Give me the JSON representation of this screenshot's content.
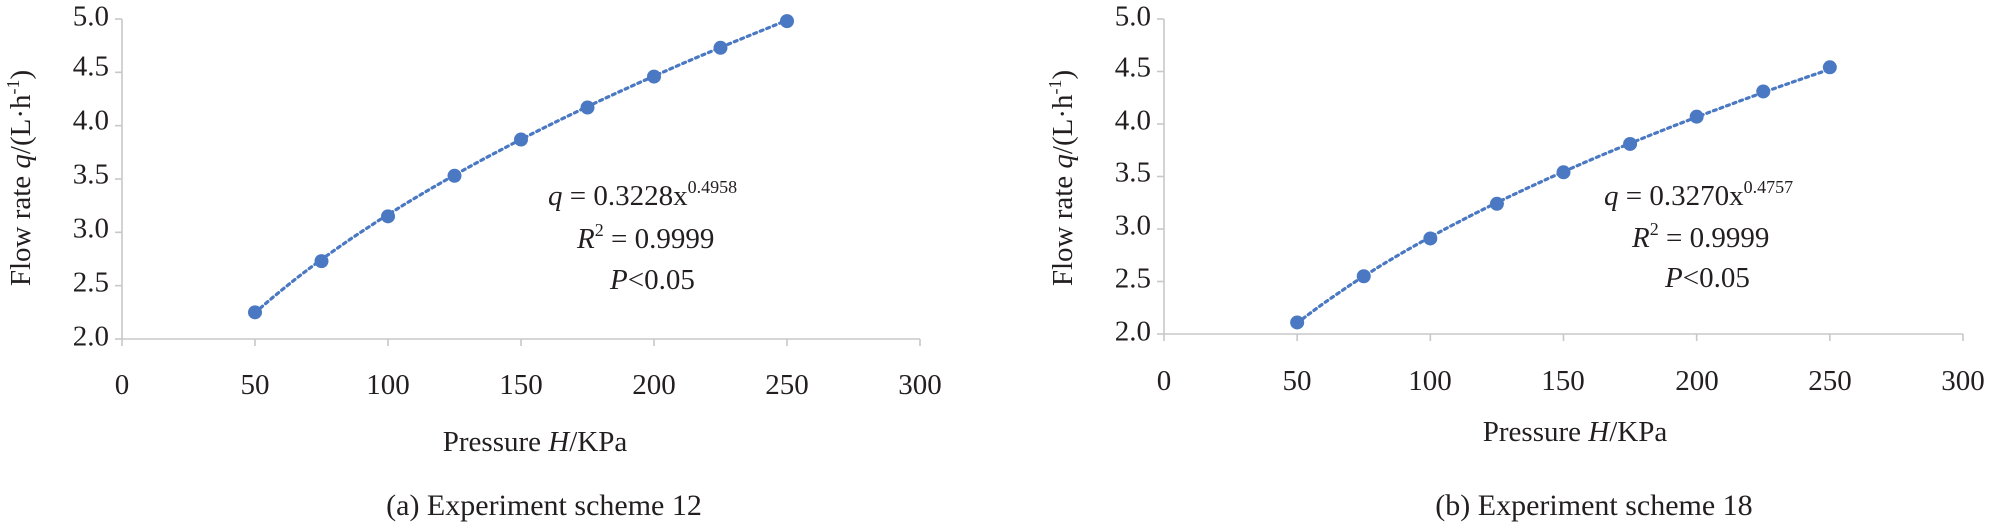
{
  "chart_data": [
    {
      "type": "scatter",
      "trendline": "power",
      "xlabel": [
        "Pressure ",
        "H",
        "/KPa"
      ],
      "ylabel": [
        "Flow rate ",
        "q",
        "/(L·h",
        "-1",
        ")"
      ],
      "xlim": [
        0,
        300
      ],
      "ylim": [
        2.0,
        5.0
      ],
      "xticks": [
        "0",
        "50",
        "100",
        "150",
        "200",
        "250",
        "300"
      ],
      "yticks": [
        "2.0",
        "2.5",
        "3.0",
        "3.5",
        "4.0",
        "4.5",
        "5.0"
      ],
      "grid": false,
      "series": [
        {
          "x": [
            50,
            75,
            100,
            125,
            150,
            175,
            200,
            225,
            250
          ],
          "y": [
            2.25,
            2.73,
            3.15,
            3.53,
            3.87,
            4.17,
            4.46,
            4.73,
            4.98
          ]
        }
      ],
      "fit": {
        "a": 0.3228,
        "b": 0.4958
      },
      "equation": {
        "line1": [
          "q",
          " = 0.3228x",
          "0.4958"
        ],
        "line2": [
          "R",
          "2",
          " = 0.9999"
        ],
        "line3": [
          "P",
          "<0.05"
        ]
      },
      "caption": "(a) Experiment scheme 12"
    },
    {
      "type": "scatter",
      "trendline": "power",
      "xlabel": [
        "Pressure ",
        "H",
        "/KPa"
      ],
      "ylabel": [
        "Flow rate ",
        "q",
        "/(L·h",
        "-1",
        ")"
      ],
      "xlim": [
        0,
        300
      ],
      "ylim": [
        2.0,
        5.0
      ],
      "xticks": [
        "0",
        "50",
        "100",
        "150",
        "200",
        "250",
        "300"
      ],
      "yticks": [
        "2.0",
        "2.5",
        "3.0",
        "3.5",
        "4.0",
        "4.5",
        "5.0"
      ],
      "grid": false,
      "series": [
        {
          "x": [
            50,
            75,
            100,
            125,
            150,
            175,
            200,
            225,
            250
          ],
          "y": [
            2.11,
            2.55,
            2.91,
            3.24,
            3.54,
            3.81,
            4.07,
            4.31,
            4.54
          ]
        }
      ],
      "fit": {
        "a": 0.327,
        "b": 0.4757
      },
      "equation": {
        "line1": [
          "q",
          " = 0.3270x",
          "0.4757"
        ],
        "line2": [
          "R",
          "2",
          " = 0.9999"
        ],
        "line3": [
          "P",
          "<0.05"
        ]
      },
      "caption": "(b) Experiment scheme 18"
    }
  ],
  "colors": {
    "marker": "#4a78c2",
    "trendline": "#4a78c2",
    "axis": "#c8c8c8",
    "text": "#231f20"
  }
}
